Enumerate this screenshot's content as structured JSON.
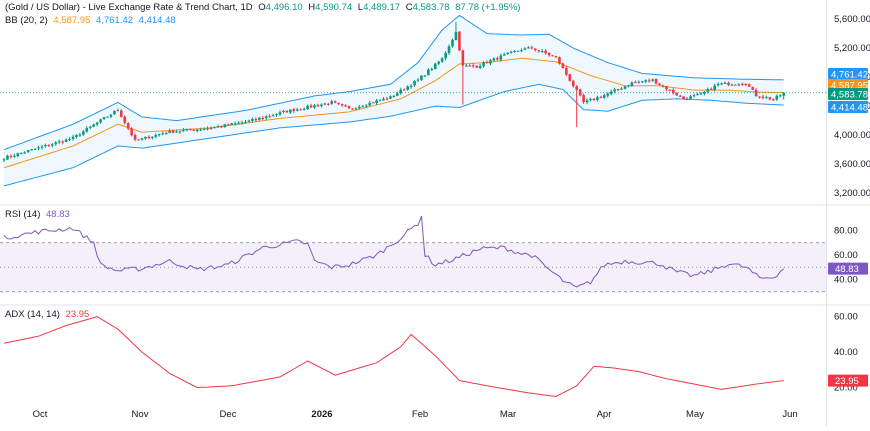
{
  "header": {
    "title": "(Gold / US Dollar) - Live Exchange Rate & Trend Chart, 1D",
    "ohlc": {
      "open_label": "O",
      "open": "4,496.10",
      "high_label": "H",
      "high": "4,590.74",
      "low_label": "L",
      "low": "4,489.17",
      "close_label": "C",
      "close": "4,583.78",
      "change": "87.78 (+1.95%)"
    },
    "bb_label": "BB (20, 2)",
    "bb_basis": "4,587.95",
    "bb_upper": "4,761.42",
    "bb_lower": "4,414.48"
  },
  "rsi_panel": {
    "label": "RSI (14)",
    "value": "48.83"
  },
  "adx_panel": {
    "label": "ADX (14, 14)",
    "value": "23.95"
  },
  "colors": {
    "up": "#089981",
    "down": "#f23645",
    "bb_basis": "#f7931a",
    "bb_band": "#2196f3",
    "rsi": "#7e57c2",
    "adx": "#f23645"
  },
  "chart_data": [
    {
      "type": "candlestick",
      "title": "(Gold / US Dollar) - Live Exchange Rate & Trend Chart, 1D",
      "ylim": [
        3050,
        5780
      ],
      "y_ticks": [
        "5,600.00",
        "5,200.00",
        "4,800.00",
        "4,400.00",
        "4,000.00",
        "3,600.00",
        "3,200.00"
      ],
      "y_tick_values": [
        5600,
        5200,
        4800,
        4400,
        4000,
        3600,
        3200
      ],
      "x_labels": [
        "Oct",
        "Nov",
        "Dec",
        "2026",
        "Feb",
        "Mar",
        "Apr",
        "May",
        "Jun"
      ],
      "price_labels": [
        "4,761.42",
        "4,587.95",
        "4,583.78",
        "4,414.48"
      ],
      "price_label_values": [
        4761.42,
        4587.95,
        4583.78,
        4414.48
      ],
      "price_label_colors": [
        "#2196f3",
        "#f7931a",
        "#089981",
        "#2196f3"
      ],
      "last_close": 4583.78,
      "close_anchors": [
        [
          0,
          3685
        ],
        [
          20,
          3960
        ],
        [
          33,
          4350
        ],
        [
          38,
          3920
        ],
        [
          47,
          4040
        ],
        [
          60,
          4100
        ],
        [
          70,
          4180
        ],
        [
          82,
          4330
        ],
        [
          95,
          4450
        ],
        [
          100,
          4360
        ],
        [
          112,
          4520
        ],
        [
          120,
          4760
        ],
        [
          127,
          5050
        ],
        [
          131,
          5420
        ],
        [
          133,
          4950
        ],
        [
          137,
          4950
        ],
        [
          145,
          5100
        ],
        [
          150,
          5180
        ],
        [
          153,
          5200
        ],
        [
          160,
          5070
        ],
        [
          168,
          4450
        ],
        [
          170,
          4480
        ],
        [
          174,
          4550
        ],
        [
          178,
          4630
        ],
        [
          182,
          4720
        ],
        [
          188,
          4760
        ],
        [
          190,
          4700
        ],
        [
          197,
          4500
        ],
        [
          202,
          4560
        ],
        [
          207,
          4700
        ],
        [
          215,
          4720
        ],
        [
          218,
          4550
        ],
        [
          223,
          4490
        ],
        [
          226,
          4583.78
        ]
      ],
      "bb_upper_anchors": [
        [
          0,
          3800
        ],
        [
          20,
          4150
        ],
        [
          33,
          4450
        ],
        [
          40,
          4250
        ],
        [
          50,
          4200
        ],
        [
          70,
          4340
        ],
        [
          90,
          4540
        ],
        [
          100,
          4600
        ],
        [
          112,
          4700
        ],
        [
          120,
          5000
        ],
        [
          127,
          5450
        ],
        [
          132,
          5650
        ],
        [
          140,
          5400
        ],
        [
          150,
          5380
        ],
        [
          158,
          5390
        ],
        [
          165,
          5200
        ],
        [
          175,
          5000
        ],
        [
          185,
          4850
        ],
        [
          200,
          4790
        ],
        [
          215,
          4770
        ],
        [
          226,
          4761.42
        ]
      ],
      "bb_basis_anchors": [
        [
          0,
          3550
        ],
        [
          20,
          3850
        ],
        [
          33,
          4150
        ],
        [
          40,
          4040
        ],
        [
          60,
          4100
        ],
        [
          80,
          4230
        ],
        [
          100,
          4320
        ],
        [
          115,
          4500
        ],
        [
          125,
          4750
        ],
        [
          132,
          4980
        ],
        [
          140,
          5000
        ],
        [
          150,
          5060
        ],
        [
          160,
          5010
        ],
        [
          170,
          4820
        ],
        [
          180,
          4680
        ],
        [
          190,
          4680
        ],
        [
          200,
          4620
        ],
        [
          210,
          4620
        ],
        [
          220,
          4590
        ],
        [
          226,
          4587.95
        ]
      ],
      "bb_lower_anchors": [
        [
          0,
          3300
        ],
        [
          20,
          3550
        ],
        [
          33,
          3850
        ],
        [
          40,
          3820
        ],
        [
          60,
          3960
        ],
        [
          80,
          4100
        ],
        [
          100,
          4180
        ],
        [
          112,
          4260
        ],
        [
          125,
          4400
        ],
        [
          132,
          4380
        ],
        [
          145,
          4600
        ],
        [
          155,
          4700
        ],
        [
          162,
          4630
        ],
        [
          168,
          4350
        ],
        [
          175,
          4330
        ],
        [
          185,
          4480
        ],
        [
          195,
          4500
        ],
        [
          205,
          4480
        ],
        [
          215,
          4440
        ],
        [
          226,
          4414.48
        ]
      ]
    },
    {
      "type": "line",
      "title": "RSI (14)",
      "ylim": [
        20,
        100
      ],
      "y_ticks": [
        "80.00",
        "60.00",
        "40.00"
      ],
      "y_tick_values": [
        80,
        60,
        40
      ],
      "band": [
        30,
        70
      ],
      "midline": 50,
      "last_value": 48.83,
      "anchors": [
        [
          0,
          74
        ],
        [
          10,
          79
        ],
        [
          20,
          82
        ],
        [
          26,
          70
        ],
        [
          28,
          52
        ],
        [
          33,
          47
        ],
        [
          40,
          49
        ],
        [
          48,
          55
        ],
        [
          56,
          48
        ],
        [
          65,
          52
        ],
        [
          75,
          66
        ],
        [
          85,
          71
        ],
        [
          88,
          69
        ],
        [
          90,
          55
        ],
        [
          95,
          50
        ],
        [
          100,
          52
        ],
        [
          108,
          60
        ],
        [
          115,
          74
        ],
        [
          120,
          86
        ],
        [
          121,
          92
        ],
        [
          122,
          60
        ],
        [
          125,
          52
        ],
        [
          130,
          56
        ],
        [
          138,
          65
        ],
        [
          145,
          66
        ],
        [
          150,
          61
        ],
        [
          153,
          60
        ],
        [
          158,
          48
        ],
        [
          163,
          37
        ],
        [
          166,
          33
        ],
        [
          170,
          38
        ],
        [
          174,
          52
        ],
        [
          180,
          55
        ],
        [
          186,
          54
        ],
        [
          190,
          53
        ],
        [
          195,
          46
        ],
        [
          200,
          43
        ],
        [
          205,
          47
        ],
        [
          210,
          53
        ],
        [
          215,
          50
        ],
        [
          219,
          41
        ],
        [
          223,
          42
        ],
        [
          226,
          48.83
        ]
      ]
    },
    {
      "type": "line",
      "title": "ADX (14, 14)",
      "ylim": [
        13,
        66
      ],
      "y_ticks": [
        "60.00",
        "40.00",
        "20.00"
      ],
      "y_tick_values": [
        60,
        40,
        20
      ],
      "last_value": 23.95,
      "anchors": [
        [
          0,
          45
        ],
        [
          10,
          49
        ],
        [
          18,
          55
        ],
        [
          27,
          60
        ],
        [
          33,
          53
        ],
        [
          40,
          40
        ],
        [
          48,
          28
        ],
        [
          56,
          20
        ],
        [
          66,
          21
        ],
        [
          80,
          26
        ],
        [
          88,
          35
        ],
        [
          96,
          27
        ],
        [
          108,
          34
        ],
        [
          115,
          43
        ],
        [
          118,
          50
        ],
        [
          125,
          38
        ],
        [
          132,
          24
        ],
        [
          140,
          21
        ],
        [
          152,
          17
        ],
        [
          160,
          15
        ],
        [
          166,
          21
        ],
        [
          171,
          32
        ],
        [
          177,
          31
        ],
        [
          184,
          29
        ],
        [
          192,
          25
        ],
        [
          200,
          22
        ],
        [
          208,
          19
        ],
        [
          218,
          22
        ],
        [
          226,
          23.95
        ]
      ]
    }
  ]
}
